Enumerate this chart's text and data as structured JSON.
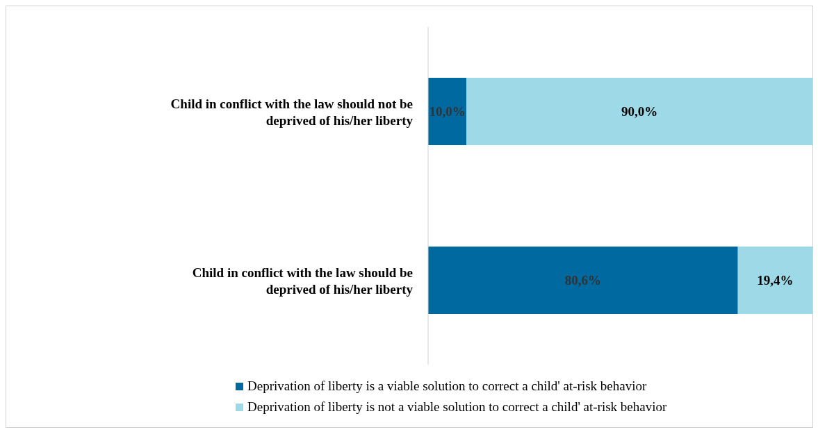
{
  "chart_data": {
    "type": "bar",
    "orientation": "horizontal",
    "stacked": true,
    "categories": [
      "Child in conflict with the law should not be deprived of his/her liberty",
      "Child in conflict with the law should be deprived of his/her liberty"
    ],
    "series": [
      {
        "name": "Deprivation of liberty is a viable solution to correct a child' at-risk behavior",
        "color": "#0069a0",
        "values": [
          10.0,
          80.6
        ],
        "value_labels": [
          "10,0%",
          "80,6%"
        ]
      },
      {
        "name": "Deprivation of liberty is not a viable solution to correct a child' at-risk behavior",
        "color": "#9ed9e8",
        "values": [
          90.0,
          19.4
        ],
        "value_labels": [
          "90,0%",
          "19,4%"
        ]
      }
    ],
    "legend": "bottom",
    "grid": false
  }
}
